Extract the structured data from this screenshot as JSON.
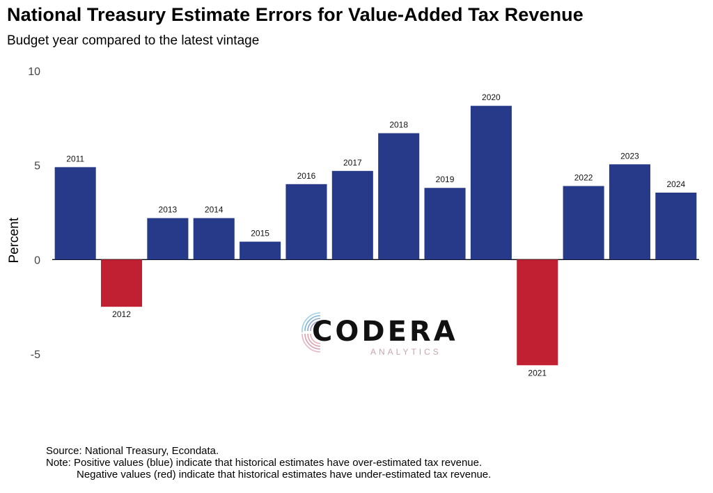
{
  "title": "National Treasury Estimate Errors for Value-Added Tax Revenue",
  "subtitle": "Budget year compared to the latest vintage",
  "colors": {
    "positive": "#273a8a",
    "negative": "#c11f32",
    "axis": "#000000"
  },
  "chart_data": {
    "type": "bar",
    "title": "National Treasury Estimate Errors for Value-Added Tax Revenue",
    "subtitle": "Budget year compared to the latest vintage",
    "xlabel": "",
    "ylabel": "Percent",
    "ylim": [
      -5,
      10
    ],
    "yticks": [
      -5,
      0,
      5,
      10
    ],
    "yticklabels": [
      "-5",
      "0",
      "5",
      "10"
    ],
    "grid": false,
    "categories": [
      "2011",
      "2012",
      "2013",
      "2014",
      "2015",
      "2016",
      "2017",
      "2018",
      "2019",
      "2020",
      "2021",
      "2022",
      "2023",
      "2024"
    ],
    "values": [
      4.9,
      -2.5,
      2.2,
      2.2,
      0.95,
      4.0,
      4.7,
      6.7,
      3.8,
      8.15,
      -5.6,
      3.9,
      5.05,
      3.55
    ]
  },
  "logo": {
    "name": "CODERA",
    "tagline": "ANALYTICS",
    "icon": "fingerprint-icon"
  },
  "footnote": {
    "source": "Source: National Treasury, Econdata.",
    "note_line1": "Note: Positive values (blue) indicate that historical estimates have over-estimated tax revenue.",
    "note_line2": "Negative values (red) indicate that historical estimates have under-estimated tax revenue."
  }
}
